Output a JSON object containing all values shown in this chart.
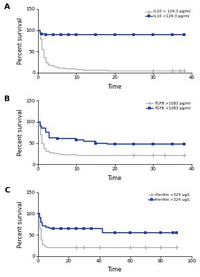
{
  "panel_A": {
    "label": "A",
    "ylim": [
      0,
      150
    ],
    "xlim": [
      0,
      40
    ],
    "xticks": [
      0,
      10,
      20,
      30,
      40
    ],
    "yticks": [
      0,
      50,
      100,
      150
    ],
    "xlabel": "Time",
    "ylabel": "Percent survival",
    "legend": [
      "IL10 > 129.3 pg/ml",
      "IL10 <129.3 pg/ml"
    ],
    "high_color": "#aaaaaa",
    "low_color": "#2244aa",
    "high_times": [
      0,
      0.5,
      1,
      1.5,
      2,
      2.5,
      3,
      4,
      5,
      6,
      7,
      8,
      10,
      12,
      15,
      18,
      20,
      25,
      30,
      35,
      37,
      38
    ],
    "high_surv": [
      100,
      80,
      55,
      35,
      25,
      20,
      17,
      14,
      12,
      11,
      10,
      9,
      8,
      7,
      6,
      5,
      5,
      5,
      5,
      5,
      5,
      5
    ],
    "high_censor_t": [
      30,
      35,
      37,
      38
    ],
    "high_censor_s": [
      5,
      5,
      5,
      5
    ],
    "low_times": [
      0,
      0.5,
      1,
      2,
      4,
      6,
      8,
      10,
      12,
      15,
      18,
      20,
      25,
      30,
      35,
      38
    ],
    "low_surv": [
      100,
      92,
      91,
      90,
      90,
      90,
      90,
      89,
      89,
      89,
      89,
      89,
      89,
      89,
      89,
      89
    ],
    "low_censor_t": [
      1,
      2,
      4,
      6,
      8,
      10,
      15,
      20,
      25,
      30,
      35,
      38
    ],
    "low_censor_s": [
      91,
      90,
      90,
      90,
      90,
      89,
      89,
      89,
      89,
      89,
      89,
      89
    ]
  },
  "panel_B": {
    "label": "B",
    "ylim": [
      0,
      150
    ],
    "xlim": [
      0,
      40
    ],
    "xticks": [
      0,
      10,
      20,
      30,
      40
    ],
    "yticks": [
      0,
      50,
      100,
      150
    ],
    "xlabel": "Time",
    "ylabel": "Percent survival",
    "legend": [
      "TGFB >1083 pg/ml",
      "TGFB <1083 pg/ml"
    ],
    "high_color": "#aaaaaa",
    "low_color": "#2244aa",
    "high_times": [
      0,
      0.5,
      1,
      1.5,
      2,
      3,
      4,
      5,
      6,
      8,
      10,
      15,
      20,
      25,
      30,
      33,
      36,
      38
    ],
    "high_surv": [
      100,
      70,
      50,
      38,
      32,
      28,
      26,
      25,
      24,
      23,
      22,
      21,
      21,
      21,
      21,
      21,
      21,
      21
    ],
    "high_censor_t": [
      25,
      30,
      33,
      38
    ],
    "high_censor_s": [
      21,
      21,
      21,
      21
    ],
    "low_times": [
      0,
      0.5,
      1,
      2,
      3,
      5,
      8,
      10,
      12,
      15,
      18,
      20,
      22,
      25,
      30,
      35,
      38
    ],
    "low_surv": [
      100,
      90,
      85,
      75,
      62,
      60,
      60,
      58,
      55,
      50,
      48,
      47,
      47,
      47,
      47,
      47,
      47
    ],
    "low_censor_t": [
      5,
      10,
      15,
      20,
      25,
      30,
      35,
      38
    ],
    "low_censor_s": [
      60,
      58,
      50,
      47,
      47,
      47,
      47,
      47
    ]
  },
  "panel_C": {
    "label": "C",
    "ylim": [
      0,
      150
    ],
    "xlim": [
      0,
      100
    ],
    "xticks": [
      0,
      20,
      40,
      60,
      80,
      100
    ],
    "yticks": [
      0,
      50,
      100,
      150
    ],
    "xlabel": "Time",
    "ylabel": "Percent survival",
    "legend": [
      "Ferritin <324 ug/L",
      "Ferritin >324 ug/L"
    ],
    "low_color": "#2244aa",
    "high_color": "#aaaaaa",
    "low_times": [
      0,
      1,
      2,
      3,
      5,
      7,
      8,
      10,
      12,
      15,
      18,
      20,
      25,
      30,
      35,
      40,
      42,
      45,
      50,
      55,
      60,
      65,
      70,
      75,
      80,
      85,
      88,
      90
    ],
    "low_surv": [
      100,
      90,
      80,
      72,
      68,
      66,
      65,
      64,
      64,
      64,
      64,
      64,
      64,
      64,
      64,
      64,
      55,
      55,
      55,
      55,
      55,
      55,
      55,
      55,
      55,
      55,
      55,
      55
    ],
    "low_censor_t": [
      10,
      15,
      20,
      25,
      30,
      35,
      50,
      60,
      70,
      80,
      88,
      90
    ],
    "low_censor_s": [
      64,
      64,
      64,
      64,
      64,
      64,
      55,
      55,
      55,
      55,
      55,
      55
    ],
    "high_times": [
      0,
      1,
      2,
      3,
      4,
      5,
      6,
      7,
      8,
      10,
      12,
      15,
      20,
      25,
      30,
      40,
      50,
      60,
      70,
      80,
      90
    ],
    "high_surv": [
      100,
      65,
      38,
      28,
      24,
      22,
      21,
      21,
      21,
      21,
      21,
      21,
      21,
      21,
      21,
      21,
      21,
      21,
      21,
      21,
      21
    ],
    "high_censor_t": [
      25,
      30,
      40,
      60,
      70,
      80,
      90
    ],
    "high_censor_s": [
      21,
      21,
      21,
      21,
      21,
      21,
      21
    ]
  }
}
